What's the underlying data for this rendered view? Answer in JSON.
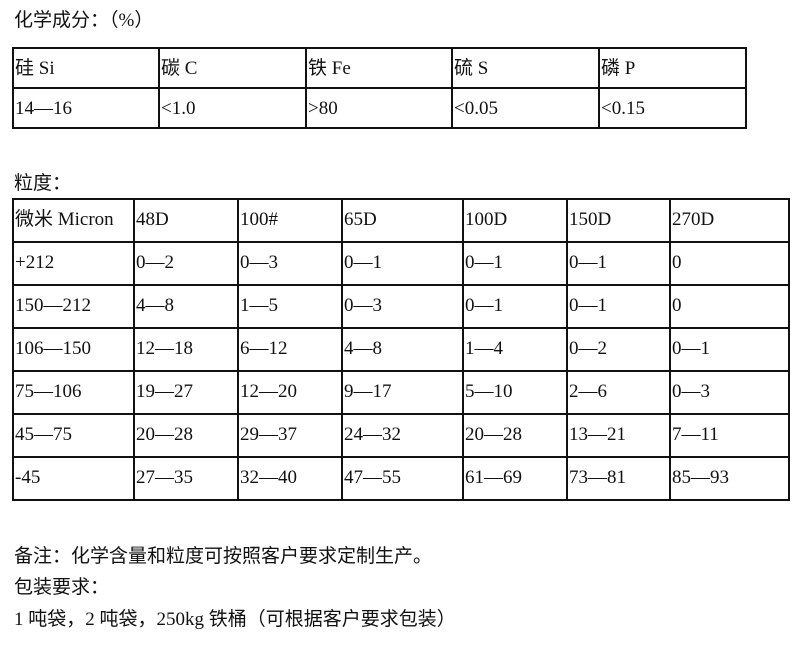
{
  "chemistry": {
    "title": "化学成分：（%）",
    "headers": [
      "硅 Si",
      "碳 C",
      "铁 Fe",
      "硫 S",
      "磷 P"
    ],
    "values": [
      "14—16",
      "<1.0",
      ">80",
      "<0.05",
      "<0.15"
    ]
  },
  "particle_size": {
    "title": "粒度：",
    "headers": [
      "微米 Micron",
      "48D",
      "100#",
      "65D",
      "100D",
      "150D",
      "270D"
    ],
    "rows": [
      [
        "+212",
        "0—2",
        "0—3",
        "0—1",
        "0—1",
        "0—1",
        "0"
      ],
      [
        "150—212",
        "4—8",
        "1—5",
        "0—3",
        "0—1",
        "0—1",
        "0"
      ],
      [
        "106—150",
        "12—18",
        "6—12",
        "4—8",
        "1—4",
        "0—2",
        "0—1"
      ],
      [
        "75—106",
        "19—27",
        "12—20",
        "9—17",
        "5—10",
        "2—6",
        "0—3"
      ],
      [
        "45—75",
        "20—28",
        "29—37",
        "24—32",
        "20—28",
        "13—21",
        "7—11"
      ],
      [
        "-45",
        "27—35",
        "32—40",
        "47—55",
        "61—69",
        "73—81",
        "85—93"
      ]
    ]
  },
  "notes": {
    "remark": "备注：化学含量和粒度可按照客户要求定制生产。",
    "packaging_title": "包装要求：",
    "packaging": "1 吨袋，2 吨袋，250kg 铁桶（可根据客户要求包装）"
  }
}
